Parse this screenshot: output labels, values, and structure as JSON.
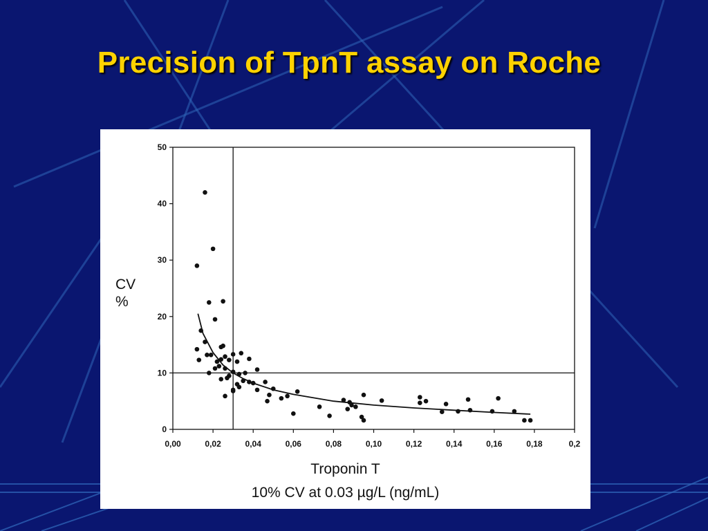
{
  "slide": {
    "title": "Precision of TpnT assay on Roche"
  },
  "colors": {
    "background": "#0a1670",
    "title": "#ffd200",
    "streak": "#2f66b8"
  },
  "chart_data": {
    "type": "scatter",
    "title": "",
    "ylabel_line1": "CV",
    "ylabel_line2": "%",
    "xlabel": "Troponin T",
    "xlabel_note": "10% CV at 0.03 µg/L (ng/mL)",
    "xlim": [
      0,
      0.2
    ],
    "ylim": [
      0,
      50
    ],
    "x_ticks": [
      "0,00",
      "0,02",
      "0,04",
      "0,06",
      "0,08",
      "0,10",
      "0,12",
      "0,14",
      "0,16",
      "0,18",
      "0,2"
    ],
    "y_ticks": [
      "0",
      "10",
      "20",
      "30",
      "40",
      "50"
    ],
    "reference_lines": {
      "x": 0.03,
      "y": 10
    },
    "grid": false,
    "fit_curve": {
      "name": "",
      "x": [
        0.0125,
        0.015,
        0.02,
        0.025,
        0.03,
        0.035,
        0.04,
        0.05,
        0.06,
        0.08,
        0.1,
        0.12,
        0.14,
        0.16,
        0.178
      ],
      "y": [
        20.5,
        17.0,
        13.6,
        11.4,
        10.0,
        9.0,
        8.2,
        7.0,
        6.2,
        5.0,
        4.3,
        3.8,
        3.4,
        3.0,
        2.7
      ]
    },
    "points": [
      {
        "x": 0.016,
        "y": 42
      },
      {
        "x": 0.02,
        "y": 32
      },
      {
        "x": 0.012,
        "y": 29
      },
      {
        "x": 0.018,
        "y": 22.5
      },
      {
        "x": 0.025,
        "y": 22.7
      },
      {
        "x": 0.021,
        "y": 19.5
      },
      {
        "x": 0.014,
        "y": 17.5
      },
      {
        "x": 0.016,
        "y": 15.5
      },
      {
        "x": 0.024,
        "y": 14.6
      },
      {
        "x": 0.025,
        "y": 14.8
      },
      {
        "x": 0.012,
        "y": 14.2
      },
      {
        "x": 0.017,
        "y": 13.2
      },
      {
        "x": 0.019,
        "y": 13.2
      },
      {
        "x": 0.013,
        "y": 12.3
      },
      {
        "x": 0.022,
        "y": 12.0
      },
      {
        "x": 0.024,
        "y": 12.4
      },
      {
        "x": 0.026,
        "y": 12.9
      },
      {
        "x": 0.028,
        "y": 12.3
      },
      {
        "x": 0.03,
        "y": 13.3
      },
      {
        "x": 0.032,
        "y": 12.0
      },
      {
        "x": 0.034,
        "y": 13.5
      },
      {
        "x": 0.038,
        "y": 12.5
      },
      {
        "x": 0.042,
        "y": 10.6
      },
      {
        "x": 0.018,
        "y": 10.0
      },
      {
        "x": 0.021,
        "y": 10.8
      },
      {
        "x": 0.023,
        "y": 11.2
      },
      {
        "x": 0.026,
        "y": 10.8
      },
      {
        "x": 0.028,
        "y": 9.5
      },
      {
        "x": 0.03,
        "y": 10.2
      },
      {
        "x": 0.033,
        "y": 9.8
      },
      {
        "x": 0.036,
        "y": 10.0
      },
      {
        "x": 0.038,
        "y": 8.4
      },
      {
        "x": 0.024,
        "y": 8.9
      },
      {
        "x": 0.027,
        "y": 9.1
      },
      {
        "x": 0.032,
        "y": 8.0
      },
      {
        "x": 0.035,
        "y": 8.6
      },
      {
        "x": 0.04,
        "y": 8.2
      },
      {
        "x": 0.046,
        "y": 8.4
      },
      {
        "x": 0.03,
        "y": 7.0
      },
      {
        "x": 0.033,
        "y": 7.5
      },
      {
        "x": 0.03,
        "y": 6.8
      },
      {
        "x": 0.05,
        "y": 7.2
      },
      {
        "x": 0.026,
        "y": 5.9
      },
      {
        "x": 0.042,
        "y": 7.0
      },
      {
        "x": 0.048,
        "y": 6.1
      },
      {
        "x": 0.054,
        "y": 5.5
      },
      {
        "x": 0.057,
        "y": 5.9
      },
      {
        "x": 0.062,
        "y": 6.7
      },
      {
        "x": 0.047,
        "y": 5.0
      },
      {
        "x": 0.06,
        "y": 2.8
      },
      {
        "x": 0.073,
        "y": 4.0
      },
      {
        "x": 0.078,
        "y": 2.4
      },
      {
        "x": 0.085,
        "y": 5.2
      },
      {
        "x": 0.087,
        "y": 3.6
      },
      {
        "x": 0.088,
        "y": 4.8
      },
      {
        "x": 0.089,
        "y": 4.3
      },
      {
        "x": 0.091,
        "y": 4.0
      },
      {
        "x": 0.094,
        "y": 2.2
      },
      {
        "x": 0.095,
        "y": 1.6
      },
      {
        "x": 0.095,
        "y": 6.1
      },
      {
        "x": 0.104,
        "y": 5.1
      },
      {
        "x": 0.123,
        "y": 5.7
      },
      {
        "x": 0.123,
        "y": 4.7
      },
      {
        "x": 0.126,
        "y": 5.0
      },
      {
        "x": 0.134,
        "y": 3.1
      },
      {
        "x": 0.136,
        "y": 4.5
      },
      {
        "x": 0.142,
        "y": 3.2
      },
      {
        "x": 0.147,
        "y": 5.3
      },
      {
        "x": 0.148,
        "y": 3.4
      },
      {
        "x": 0.159,
        "y": 3.2
      },
      {
        "x": 0.162,
        "y": 5.5
      },
      {
        "x": 0.17,
        "y": 3.2
      },
      {
        "x": 0.175,
        "y": 1.6
      },
      {
        "x": 0.178,
        "y": 1.6
      }
    ]
  }
}
